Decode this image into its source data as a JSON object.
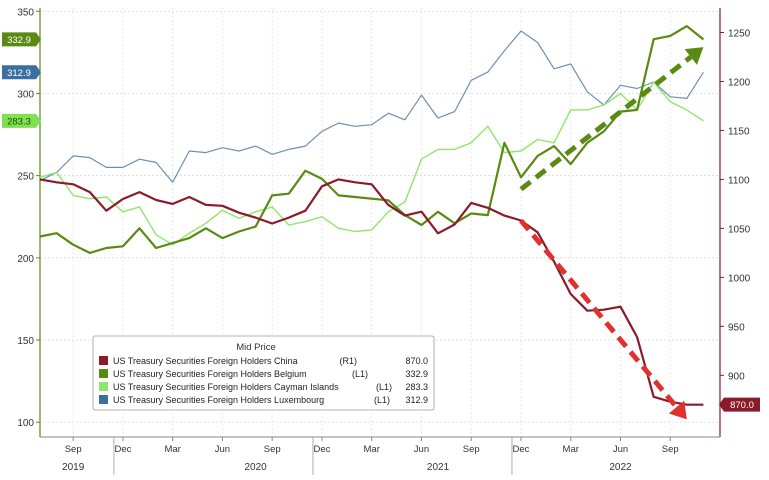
{
  "chart_data": {
    "type": "line",
    "legend": {
      "title": "Mid Price",
      "placement": "bottom-left",
      "entries": [
        {
          "name": "US Treasury Securities Foreign Holders China",
          "axis_tag": "(R1)",
          "last": "870.0",
          "color": "#8b1a2b"
        },
        {
          "name": "US Treasury Securities Foreign Holders Belgium",
          "axis_tag": "(L1)",
          "last": "332.9",
          "color": "#5a8a14"
        },
        {
          "name": "US Treasury Securities Foreign Holders Cayman Islands",
          "axis_tag": "(L1)",
          "last": "283.3",
          "color": "#8de86a"
        },
        {
          "name": "US Treasury Securities Foreign Holders Luxembourg",
          "axis_tag": "(L1)",
          "last": "312.9",
          "color": "#6f8fb0"
        }
      ]
    },
    "left_axis": {
      "min": 91,
      "max": 352,
      "ticks": [
        100,
        150,
        200,
        250,
        300,
        350
      ]
    },
    "right_axis": {
      "min": 837,
      "max": 1275,
      "ticks": [
        900,
        950,
        1000,
        1050,
        1100,
        1150,
        1200,
        1250
      ]
    },
    "x_axis": {
      "start": "2019-07",
      "end": "2022-12",
      "month_ticks": [
        {
          "date": "2019-09",
          "label": "Sep"
        },
        {
          "date": "2019-12",
          "label": "Dec"
        },
        {
          "date": "2020-03",
          "label": "Mar"
        },
        {
          "date": "2020-06",
          "label": "Jun"
        },
        {
          "date": "2020-09",
          "label": "Sep"
        },
        {
          "date": "2020-12",
          "label": "Dec"
        },
        {
          "date": "2021-03",
          "label": "Mar"
        },
        {
          "date": "2021-06",
          "label": "Jun"
        },
        {
          "date": "2021-09",
          "label": "Sep"
        },
        {
          "date": "2021-12",
          "label": "Dec"
        },
        {
          "date": "2022-03",
          "label": "Mar"
        },
        {
          "date": "2022-06",
          "label": "Jun"
        },
        {
          "date": "2022-09",
          "label": "Sep"
        }
      ],
      "year_labels": [
        {
          "date": "2019-09",
          "label": "2019"
        },
        {
          "date": "2020-08",
          "label": "2020"
        },
        {
          "date": "2021-07",
          "label": "2021"
        },
        {
          "date": "2022-06",
          "label": "2022"
        }
      ],
      "year_separators": [
        "2019-12",
        "2020-12",
        "2021-12"
      ]
    },
    "grid": true,
    "series": [
      {
        "key": "luxembourg",
        "axis": "left",
        "color": "#6f8fb0",
        "width": 1.2,
        "points": [
          [
            "2019-07",
            247
          ],
          [
            "2019-08",
            252
          ],
          [
            "2019-09",
            262
          ],
          [
            "2019-10",
            261
          ],
          [
            "2019-11",
            255
          ],
          [
            "2019-12",
            255
          ],
          [
            "2020-01",
            260
          ],
          [
            "2020-02",
            258
          ],
          [
            "2020-03",
            246
          ],
          [
            "2020-04",
            265
          ],
          [
            "2020-05",
            264
          ],
          [
            "2020-06",
            267
          ],
          [
            "2020-07",
            265
          ],
          [
            "2020-08",
            268
          ],
          [
            "2020-09",
            263
          ],
          [
            "2020-10",
            266
          ],
          [
            "2020-11",
            268
          ],
          [
            "2020-12",
            277
          ],
          [
            "2021-01",
            282
          ],
          [
            "2021-02",
            280
          ],
          [
            "2021-03",
            281
          ],
          [
            "2021-04",
            288
          ],
          [
            "2021-05",
            284
          ],
          [
            "2021-06",
            299
          ],
          [
            "2021-07",
            285
          ],
          [
            "2021-08",
            289
          ],
          [
            "2021-09",
            308
          ],
          [
            "2021-10",
            313
          ],
          [
            "2021-11",
            326
          ],
          [
            "2021-12",
            338
          ],
          [
            "2022-01",
            331
          ],
          [
            "2022-02",
            315
          ],
          [
            "2022-03",
            318
          ],
          [
            "2022-04",
            301
          ],
          [
            "2022-05",
            293
          ],
          [
            "2022-06",
            305
          ],
          [
            "2022-07",
            303
          ],
          [
            "2022-08",
            307
          ],
          [
            "2022-09",
            298
          ],
          [
            "2022-10",
            297
          ],
          [
            "2022-11",
            312.9
          ]
        ]
      },
      {
        "key": "cayman",
        "axis": "left",
        "color": "#8de86a",
        "width": 1.4,
        "points": [
          [
            "2019-07",
            249
          ],
          [
            "2019-08",
            252
          ],
          [
            "2019-09",
            238
          ],
          [
            "2019-10",
            236
          ],
          [
            "2019-11",
            237
          ],
          [
            "2019-12",
            228
          ],
          [
            "2020-01",
            231
          ],
          [
            "2020-02",
            214
          ],
          [
            "2020-03",
            208
          ],
          [
            "2020-04",
            215
          ],
          [
            "2020-05",
            221
          ],
          [
            "2020-06",
            229
          ],
          [
            "2020-07",
            224
          ],
          [
            "2020-08",
            228
          ],
          [
            "2020-09",
            231
          ],
          [
            "2020-10",
            220
          ],
          [
            "2020-11",
            222
          ],
          [
            "2020-12",
            225
          ],
          [
            "2021-01",
            218
          ],
          [
            "2021-02",
            216
          ],
          [
            "2021-03",
            217
          ],
          [
            "2021-04",
            228
          ],
          [
            "2021-05",
            234
          ],
          [
            "2021-06",
            260
          ],
          [
            "2021-07",
            266
          ],
          [
            "2021-08",
            266
          ],
          [
            "2021-09",
            270
          ],
          [
            "2021-10",
            280
          ],
          [
            "2021-11",
            264
          ],
          [
            "2021-12",
            265
          ],
          [
            "2022-01",
            272
          ],
          [
            "2022-02",
            270
          ],
          [
            "2022-03",
            290
          ],
          [
            "2022-04",
            290
          ],
          [
            "2022-05",
            293
          ],
          [
            "2022-06",
            300
          ],
          [
            "2022-07",
            290
          ],
          [
            "2022-08",
            307
          ],
          [
            "2022-09",
            295
          ],
          [
            "2022-10",
            290
          ],
          [
            "2022-11",
            283.3
          ]
        ]
      },
      {
        "key": "belgium",
        "axis": "left",
        "color": "#5a8a14",
        "width": 2.2,
        "points": [
          [
            "2019-07",
            213
          ],
          [
            "2019-08",
            215
          ],
          [
            "2019-09",
            208
          ],
          [
            "2019-10",
            203
          ],
          [
            "2019-11",
            206
          ],
          [
            "2019-12",
            207
          ],
          [
            "2020-01",
            218
          ],
          [
            "2020-02",
            206
          ],
          [
            "2020-03",
            209
          ],
          [
            "2020-04",
            212
          ],
          [
            "2020-05",
            218
          ],
          [
            "2020-06",
            212
          ],
          [
            "2020-07",
            216
          ],
          [
            "2020-08",
            219
          ],
          [
            "2020-09",
            238
          ],
          [
            "2020-10",
            239
          ],
          [
            "2020-11",
            253
          ],
          [
            "2020-12",
            248
          ],
          [
            "2021-01",
            238
          ],
          [
            "2021-02",
            237
          ],
          [
            "2021-03",
            236
          ],
          [
            "2021-04",
            235
          ],
          [
            "2021-05",
            226
          ],
          [
            "2021-06",
            220
          ],
          [
            "2021-07",
            228
          ],
          [
            "2021-08",
            221
          ],
          [
            "2021-09",
            227
          ],
          [
            "2021-10",
            226
          ],
          [
            "2021-11",
            270
          ],
          [
            "2021-12",
            249
          ],
          [
            "2022-01",
            262
          ],
          [
            "2022-02",
            268
          ],
          [
            "2022-03",
            257
          ],
          [
            "2022-04",
            270
          ],
          [
            "2022-05",
            277
          ],
          [
            "2022-06",
            289
          ],
          [
            "2022-07",
            290
          ],
          [
            "2022-08",
            333
          ],
          [
            "2022-09",
            335
          ],
          [
            "2022-10",
            341
          ],
          [
            "2022-11",
            332.9
          ]
        ]
      },
      {
        "key": "china",
        "axis": "right",
        "color": "#8b1a2b",
        "width": 2.2,
        "points": [
          [
            "2019-07",
            1100
          ],
          [
            "2019-08",
            1097
          ],
          [
            "2019-09",
            1095
          ],
          [
            "2019-10",
            1087
          ],
          [
            "2019-11",
            1068
          ],
          [
            "2019-12",
            1080
          ],
          [
            "2020-01",
            1087
          ],
          [
            "2020-02",
            1079
          ],
          [
            "2020-03",
            1075
          ],
          [
            "2020-04",
            1082
          ],
          [
            "2020-05",
            1074
          ],
          [
            "2020-06",
            1073
          ],
          [
            "2020-07",
            1066
          ],
          [
            "2020-08",
            1061
          ],
          [
            "2020-09",
            1055
          ],
          [
            "2020-10",
            1061
          ],
          [
            "2020-11",
            1068
          ],
          [
            "2020-12",
            1093
          ],
          [
            "2021-01",
            1100
          ],
          [
            "2021-02",
            1097
          ],
          [
            "2021-03",
            1095
          ],
          [
            "2021-04",
            1074
          ],
          [
            "2021-05",
            1063
          ],
          [
            "2021-06",
            1067
          ],
          [
            "2021-07",
            1045
          ],
          [
            "2021-08",
            1054
          ],
          [
            "2021-09",
            1076
          ],
          [
            "2021-10",
            1071
          ],
          [
            "2021-11",
            1063
          ],
          [
            "2021-12",
            1058
          ],
          [
            "2022-01",
            1046
          ],
          [
            "2022-02",
            1016
          ],
          [
            "2022-03",
            983
          ],
          [
            "2022-04",
            966
          ],
          [
            "2022-05",
            967
          ],
          [
            "2022-06",
            970
          ],
          [
            "2022-07",
            939
          ],
          [
            "2022-08",
            878
          ],
          [
            "2022-09",
            873
          ],
          [
            "2022-10",
            870
          ],
          [
            "2022-11",
            870
          ]
        ]
      }
    ],
    "annotation_arrows": [
      {
        "color": "#5a8a14",
        "from": [
          "2021-12",
          1090
        ],
        "to": [
          "2022-11",
          1235
        ],
        "axis": "right"
      },
      {
        "color": "#e03030",
        "from": [
          "2021-12",
          1058
        ],
        "to": [
          "2022-10",
          855
        ],
        "axis": "right"
      }
    ],
    "value_tags": [
      {
        "text": "332.9",
        "axis": "left",
        "value": 332.9,
        "bg": "#5a8a14",
        "fg": "#ffffff",
        "side": "left"
      },
      {
        "text": "312.9",
        "axis": "left",
        "value": 312.9,
        "bg": "#3b6fa0",
        "fg": "#ffffff",
        "side": "left"
      },
      {
        "text": "283.3",
        "axis": "left",
        "value": 283.3,
        "bg": "#7fe052",
        "fg": "#1e4a10",
        "side": "left"
      },
      {
        "text": "870.0",
        "axis": "right",
        "value": 870,
        "bg": "#8b1a2b",
        "fg": "#ffffff",
        "side": "right"
      }
    ]
  }
}
